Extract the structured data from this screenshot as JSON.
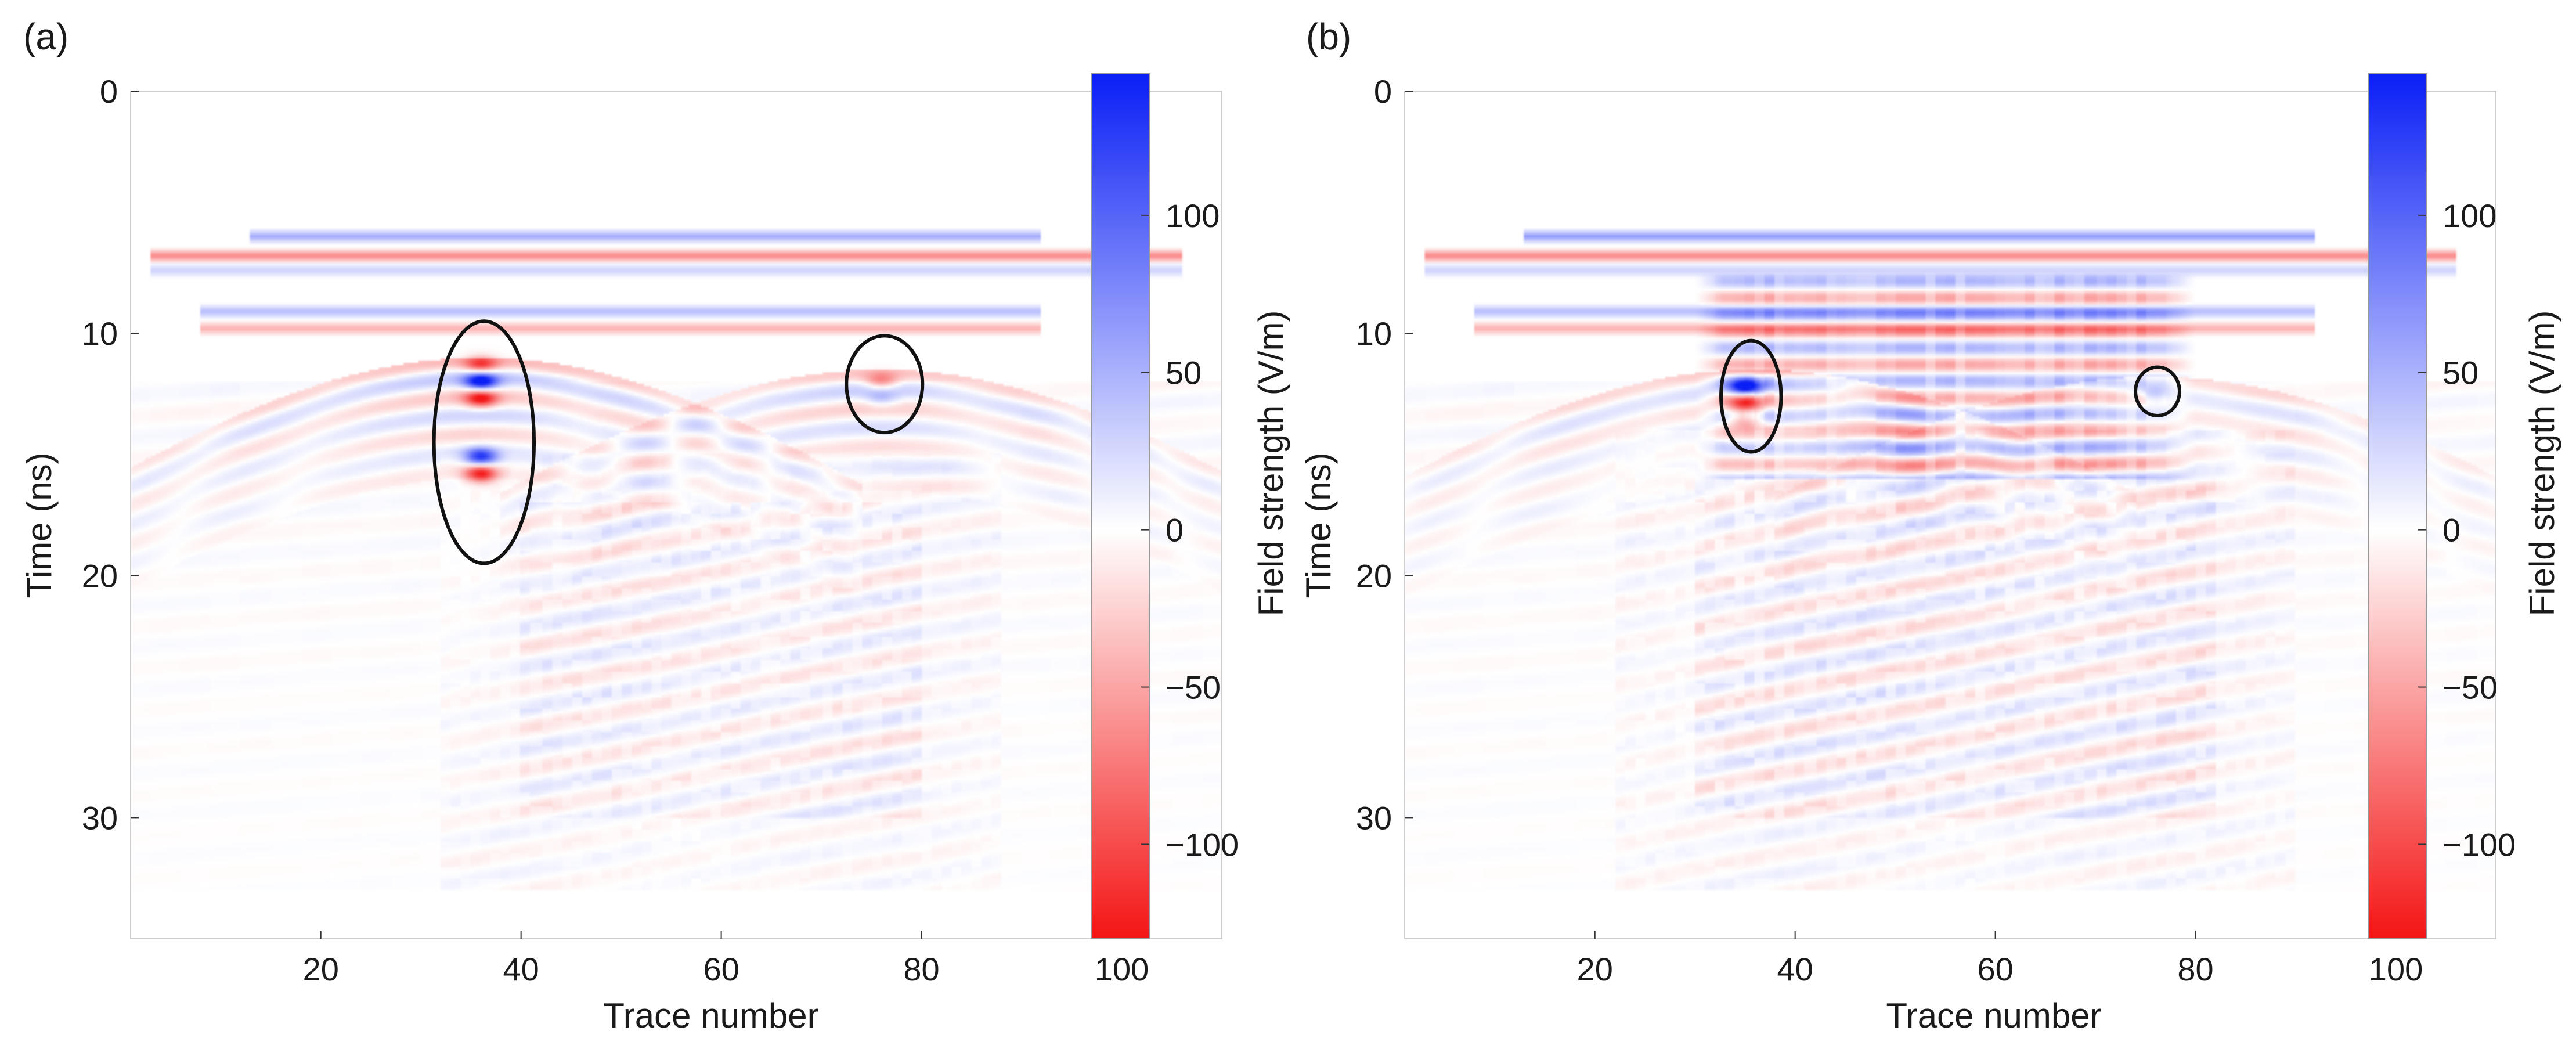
{
  "figure": {
    "panels": [
      "(a)",
      "(b)"
    ]
  },
  "chart_data": [
    {
      "type": "heatmap",
      "panel_label": "(a)",
      "title": "",
      "xlabel": "Trace number",
      "ylabel": "Time (ns)",
      "xlim": [
        1,
        110
      ],
      "ylim": [
        0,
        35
      ],
      "y_inverted": true,
      "xticks": [
        20,
        40,
        60,
        80,
        100
      ],
      "yticks": [
        0,
        10,
        20,
        30
      ],
      "colorbar": {
        "label": "Field strength (V/m)",
        "range": [
          -130,
          145
        ],
        "ticks": [
          100,
          50,
          0,
          -50,
          -100
        ],
        "tick_labels": [
          "100",
          "50",
          "0",
          "−50",
          "−100"
        ],
        "colors": {
          "positive": "#0a1ff5",
          "zero": "#ffffff",
          "negative": "#f41515"
        }
      },
      "features": {
        "direct_wave_bands": [
          {
            "time_ns": 6.0,
            "trace_from": 13,
            "trace_to": 92,
            "polarity": "positive",
            "amplitude": 55
          },
          {
            "time_ns": 6.8,
            "trace_from": 3,
            "trace_to": 106,
            "polarity": "negative",
            "amplitude": 70
          },
          {
            "time_ns": 7.4,
            "trace_from": 3,
            "trace_to": 106,
            "polarity": "positive",
            "amplitude": 30
          },
          {
            "time_ns": 9.1,
            "trace_from": 8,
            "trace_to": 92,
            "polarity": "positive",
            "amplitude": 45
          },
          {
            "time_ns": 9.8,
            "trace_from": 8,
            "trace_to": 92,
            "polarity": "negative",
            "amplitude": 45
          }
        ],
        "hyperbolas": [
          {
            "apex_trace": 36,
            "apex_time_ns": 11.5,
            "amplitude": 45
          },
          {
            "apex_trace": 76,
            "apex_time_ns": 12.0,
            "amplitude": 35
          }
        ],
        "target_reflections": [
          {
            "trace": 36,
            "time_ns": 11.3,
            "value": -80
          },
          {
            "trace": 36,
            "time_ns": 12.0,
            "value": 140
          },
          {
            "trace": 36,
            "time_ns": 12.7,
            "value": -110
          },
          {
            "trace": 36,
            "time_ns": 15.1,
            "value": 120
          },
          {
            "trace": 36,
            "time_ns": 15.8,
            "value": -120
          },
          {
            "trace": 76,
            "time_ns": 12.0,
            "value": -60
          },
          {
            "trace": 76,
            "time_ns": 12.7,
            "value": 35
          }
        ],
        "clutter_region": {
          "trace_from": 40,
          "trace_to": 80,
          "time_from_ns": 17,
          "time_to_ns": 30,
          "amplitude": 20
        },
        "annotations": [
          {
            "shape": "ellipse",
            "center_trace": 36.3,
            "center_time_ns": 14.5,
            "half_width_traces": 5,
            "half_height_ns": 5
          },
          {
            "shape": "ellipse",
            "center_trace": 76.3,
            "center_time_ns": 12.1,
            "half_width_traces": 3.8,
            "half_height_ns": 2
          }
        ]
      }
    },
    {
      "type": "heatmap",
      "panel_label": "(b)",
      "title": "",
      "xlabel": "Trace number",
      "ylabel": "Time (ns)",
      "xlim": [
        1,
        110
      ],
      "ylim": [
        0,
        35
      ],
      "y_inverted": true,
      "xticks": [
        20,
        40,
        60,
        80,
        100
      ],
      "yticks": [
        0,
        10,
        20,
        30
      ],
      "colorbar": {
        "label": "Field strength (V/m)",
        "range": [
          -130,
          145
        ],
        "ticks": [
          100,
          50,
          0,
          -50,
          -100
        ],
        "tick_labels": [
          "100",
          "50",
          "0",
          "−50",
          "−100"
        ],
        "colors": {
          "positive": "#0a1ff5",
          "zero": "#ffffff",
          "negative": "#f41515"
        }
      },
      "features": {
        "direct_wave_bands": [
          {
            "time_ns": 6.0,
            "trace_from": 13,
            "trace_to": 92,
            "polarity": "positive",
            "amplitude": 65
          },
          {
            "time_ns": 6.8,
            "trace_from": 3,
            "trace_to": 106,
            "polarity": "negative",
            "amplitude": 70
          },
          {
            "time_ns": 7.4,
            "trace_from": 3,
            "trace_to": 106,
            "polarity": "positive",
            "amplitude": 30
          },
          {
            "time_ns": 9.1,
            "trace_from": 8,
            "trace_to": 92,
            "polarity": "positive",
            "amplitude": 45
          },
          {
            "time_ns": 9.8,
            "trace_from": 8,
            "trace_to": 92,
            "polarity": "negative",
            "amplitude": 45
          }
        ],
        "hyperbolas": [
          {
            "apex_trace": 36,
            "apex_time_ns": 12.0,
            "amplitude": 35
          },
          {
            "apex_trace": 76,
            "apex_time_ns": 12.3,
            "amplitude": 28
          }
        ],
        "target_reflections": [
          {
            "trace": 35,
            "time_ns": 12.2,
            "value": 140
          },
          {
            "trace": 35,
            "time_ns": 12.9,
            "value": -90
          },
          {
            "trace": 35,
            "time_ns": 13.6,
            "value": -60
          },
          {
            "trace": 76,
            "time_ns": 12.5,
            "value": 40
          }
        ],
        "striped_region": {
          "trace_from": 30,
          "trace_to": 80,
          "time_from_ns": 7.5,
          "time_to_ns": 16,
          "amplitude": 55
        },
        "clutter_region": {
          "trace_from": 30,
          "trace_to": 82,
          "time_from_ns": 16,
          "time_to_ns": 30,
          "amplitude": 25
        },
        "annotations": [
          {
            "shape": "ellipse",
            "center_trace": 35.6,
            "center_time_ns": 12.6,
            "half_width_traces": 3,
            "half_height_ns": 2.3
          },
          {
            "shape": "ellipse",
            "center_trace": 76.2,
            "center_time_ns": 12.4,
            "half_width_traces": 2.2,
            "half_height_ns": 1
          }
        ]
      }
    }
  ]
}
